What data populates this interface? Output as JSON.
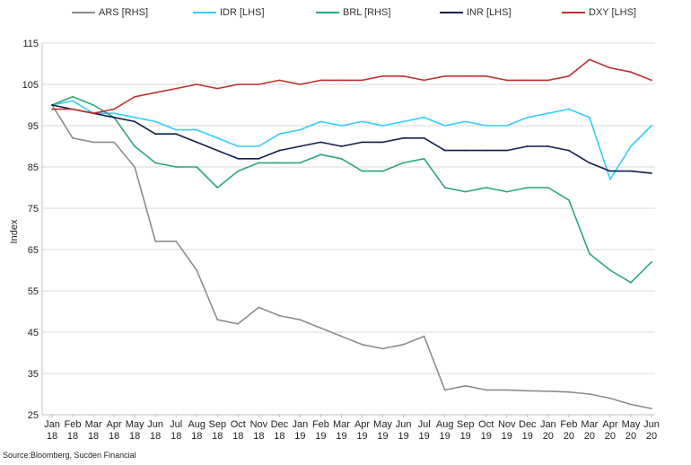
{
  "chart_data": {
    "type": "line",
    "title": "",
    "ylabel": "Index",
    "xlabel": "",
    "ylim": [
      25,
      115
    ],
    "yticks": [
      "115",
      "105",
      "95",
      "85",
      "75",
      "65",
      "55",
      "45",
      "35",
      "25"
    ],
    "grid": "horizontal",
    "legend_position": "top",
    "xtick_labels": [
      [
        "Jan",
        "18"
      ],
      [
        "Feb",
        "18"
      ],
      [
        "Mar",
        "18"
      ],
      [
        "Apr",
        "18"
      ],
      [
        "May",
        "18"
      ],
      [
        "Jun",
        "18"
      ],
      [
        "Jul",
        "18"
      ],
      [
        "Aug",
        "18"
      ],
      [
        "Sep",
        "18"
      ],
      [
        "Oct",
        "18"
      ],
      [
        "Nov",
        "18"
      ],
      [
        "Dec",
        "18"
      ],
      [
        "Jan",
        "19"
      ],
      [
        "Feb",
        "19"
      ],
      [
        "Mar",
        "19"
      ],
      [
        "Apr",
        "19"
      ],
      [
        "May",
        "19"
      ],
      [
        "Jun",
        "19"
      ],
      [
        "Jul",
        "19"
      ],
      [
        "Aug",
        "19"
      ],
      [
        "Sep",
        "19"
      ],
      [
        "Oct",
        "19"
      ],
      [
        "Nov",
        "19"
      ],
      [
        "Dec",
        "19"
      ],
      [
        "Jan",
        "20"
      ],
      [
        "Feb",
        "20"
      ],
      [
        "Mar",
        "20"
      ],
      [
        "Apr",
        "20"
      ],
      [
        "May",
        "20"
      ],
      [
        "Jun",
        "20"
      ]
    ],
    "x": [
      "Jan 18",
      "Feb 18",
      "Mar 18",
      "Apr 18",
      "May 18",
      "Jun 18",
      "Jul 18",
      "Aug 18",
      "Sep 18",
      "Oct 18",
      "Nov 18",
      "Dec 18",
      "Jan 19",
      "Feb 19",
      "Mar 19",
      "Apr 19",
      "May 19",
      "Jun 19",
      "Jul 19",
      "Aug 19",
      "Sep 19",
      "Oct 19",
      "Nov 19",
      "Dec 19",
      "Jan 20",
      "Feb 20",
      "Mar 20",
      "Apr 20",
      "May 20",
      "Jun 20"
    ],
    "series": [
      {
        "name": "ARS [RHS]",
        "color": "#8c8c8c",
        "values": [
          100,
          92,
          91,
          91,
          85,
          67,
          67,
          60,
          48,
          47,
          51,
          49,
          48,
          46,
          44,
          42,
          41,
          42,
          44,
          31,
          32,
          31,
          31,
          30.8,
          30.7,
          30.5,
          30,
          29,
          27.5,
          26.5
        ]
      },
      {
        "name": "IDR [LHS]",
        "color": "#33ccff",
        "values": [
          100,
          101,
          98,
          98,
          97,
          96,
          94,
          94,
          92,
          90,
          90,
          93,
          94,
          96,
          95,
          96,
          95,
          96,
          97,
          95,
          96,
          95,
          95,
          97,
          98,
          99,
          97,
          82,
          90,
          95
        ]
      },
      {
        "name": "BRL [RHS]",
        "color": "#2aa57d",
        "values": [
          100,
          102,
          100,
          97,
          90,
          86,
          85,
          85,
          80,
          84,
          86,
          86,
          86,
          88,
          87,
          84,
          84,
          86,
          87,
          80,
          79,
          80,
          79,
          80,
          80,
          77,
          64,
          60,
          57,
          62
        ]
      },
      {
        "name": "INR [LHS]",
        "color": "#0f1e4f",
        "values": [
          100,
          99,
          98,
          97,
          96,
          93,
          93,
          91,
          89,
          87,
          87,
          89,
          90,
          91,
          90,
          91,
          91,
          92,
          92,
          89,
          89,
          89,
          89,
          90,
          90,
          89,
          86,
          84,
          84,
          83.5
        ]
      },
      {
        "name": "DXY [LHS]",
        "color": "#c0312b",
        "values": [
          99,
          99,
          98,
          99,
          102,
          103,
          104,
          105,
          104,
          105,
          105,
          106,
          105,
          106,
          106,
          106,
          107,
          107,
          106,
          107,
          107,
          107,
          106,
          106,
          106,
          107,
          111,
          109,
          108,
          106
        ]
      }
    ]
  },
  "source": "Source:Bloomberg, Sucden Financial"
}
